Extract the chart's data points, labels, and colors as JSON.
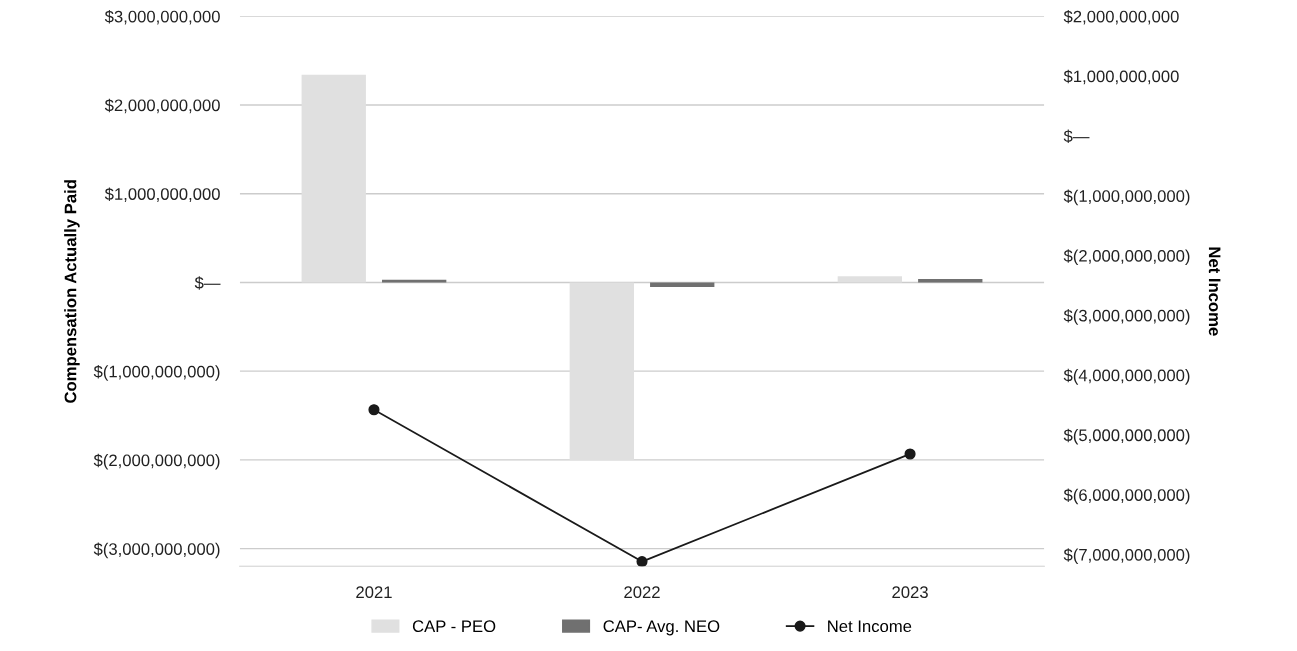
{
  "chart_data": {
    "type": "bar",
    "ylabel": "Compensation Actually Paid",
    "y2label": "Net Income",
    "categories": [
      "2021",
      "2022",
      "2023"
    ],
    "series": [
      {
        "name": "CAP - PEO",
        "color": "#e0e0e0",
        "values": [
          2340000000,
          -2000000000,
          70000000
        ]
      },
      {
        "name": "CAP- Avg. NEO",
        "color": "#707070",
        "values": [
          30000000,
          -50000000,
          40000000
        ]
      },
      {
        "name": "Net Income",
        "type": "line",
        "axis": "y2",
        "color": "#1a1a1a",
        "marker": "circle",
        "values": [
          -4580000000,
          -7120000000,
          -5320000000
        ]
      }
    ],
    "ylim": [
      -3200000000,
      3000000000
    ],
    "yticks": [
      {
        "value": 3000000000,
        "label": "$3,000,000,000"
      },
      {
        "value": 2000000000,
        "label": "$2,000,000,000"
      },
      {
        "value": 1000000000,
        "label": "$1,000,000,000"
      },
      {
        "value": 0,
        "label": "$—"
      },
      {
        "value": -1000000000,
        "label": "$(1,000,000,000)"
      },
      {
        "value": -2000000000,
        "label": "$(2,000,000,000)"
      },
      {
        "value": -3000000000,
        "label": "$(3,000,000,000)"
      }
    ],
    "y2lim": [
      -7200000000,
      2000000000
    ],
    "y2ticks": [
      {
        "value": 2000000000,
        "label": "$2,000,000,000"
      },
      {
        "value": 1000000000,
        "label": "$1,000,000,000"
      },
      {
        "value": 0,
        "label": "$—"
      },
      {
        "value": -1000000000,
        "label": "$(1,000,000,000)"
      },
      {
        "value": -2000000000,
        "label": "$(2,000,000,000)"
      },
      {
        "value": -3000000000,
        "label": "$(3,000,000,000)"
      },
      {
        "value": -4000000000,
        "label": "$(4,000,000,000)"
      },
      {
        "value": -5000000000,
        "label": "$(5,000,000,000)"
      },
      {
        "value": -6000000000,
        "label": "$(6,000,000,000)"
      },
      {
        "value": -7000000000,
        "label": "$(7,000,000,000)"
      }
    ],
    "grid": "y",
    "legend": "bottom"
  }
}
